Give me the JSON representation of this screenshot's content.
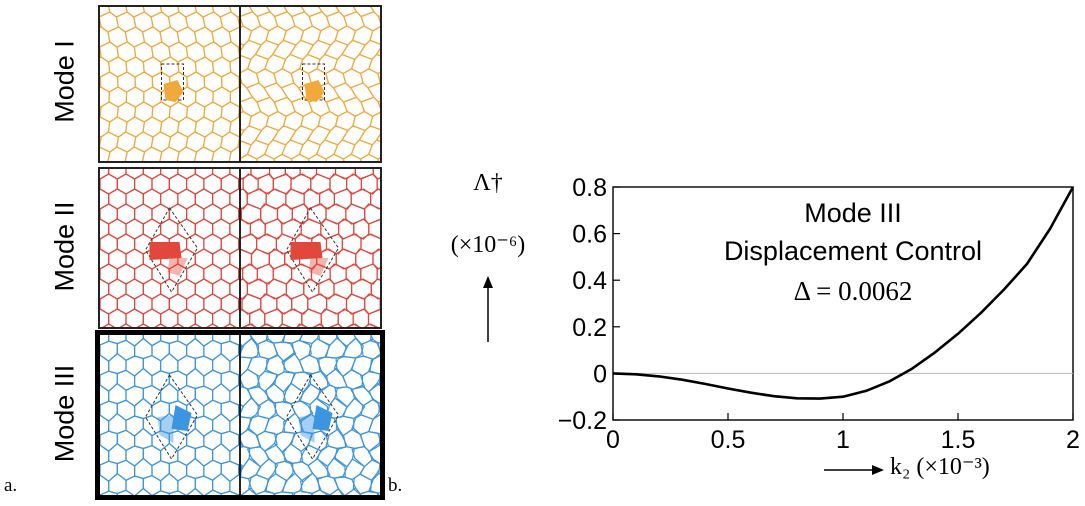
{
  "panels": {
    "a": "a.",
    "b": "b."
  },
  "modes": [
    {
      "label": "Mode I",
      "color": "#F2A93B",
      "fill": "#F2A93B"
    },
    {
      "label": "Mode II",
      "color": "#E2473C",
      "fill": "#E2473C"
    },
    {
      "label": "Mode III",
      "color": "#3C95E0",
      "fill": "#3C95E0"
    }
  ],
  "chart_data": {
    "type": "line",
    "title": "Mode III",
    "subtitle": "Displacement Control",
    "annotation": "Δ = 0.0062",
    "ylabel": "Λ†",
    "ylabel_unit": "(×10⁻⁶)",
    "xlabel": "k₂ (×10⁻³)",
    "xlim": [
      0,
      2
    ],
    "ylim": [
      -0.2,
      0.8
    ],
    "xticks": [
      "0",
      "0.5",
      "1",
      "1.5",
      "2"
    ],
    "yticks": [
      "0.8",
      "0.6",
      "0.4",
      "0.2",
      "0",
      "−0.2"
    ],
    "zero_line": true,
    "series": [
      {
        "color": "#000000",
        "x": [
          0,
          0.1,
          0.2,
          0.3,
          0.4,
          0.5,
          0.6,
          0.7,
          0.8,
          0.9,
          1.0,
          1.1,
          1.2,
          1.3,
          1.4,
          1.5,
          1.6,
          1.7,
          1.8,
          1.9,
          2.0
        ],
        "y": [
          0,
          -0.004,
          -0.013,
          -0.027,
          -0.045,
          -0.065,
          -0.083,
          -0.098,
          -0.107,
          -0.108,
          -0.1,
          -0.075,
          -0.035,
          0.02,
          0.09,
          0.17,
          0.26,
          0.36,
          0.47,
          0.62,
          0.8
        ]
      }
    ]
  }
}
